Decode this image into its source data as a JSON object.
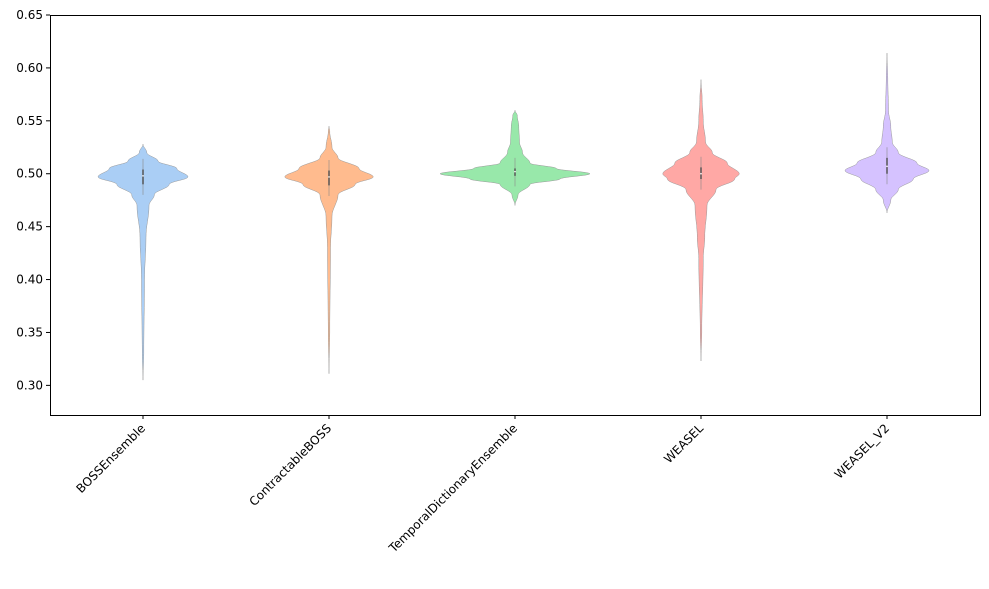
{
  "chart_data": {
    "type": "violin",
    "title": "",
    "xlabel": "",
    "ylabel": "",
    "ylim": [
      0.272,
      0.65
    ],
    "yticks": [
      0.3,
      0.35,
      0.4,
      0.45,
      0.5,
      0.55,
      0.6,
      0.65
    ],
    "ytick_labels": [
      "0.30",
      "0.35",
      "0.40",
      "0.45",
      "0.50",
      "0.55",
      "0.60",
      "0.65"
    ],
    "grid": false,
    "categories": [
      "BOSSEnsemble",
      "ContractableBOSS",
      "TemporalDictionaryEnsemble",
      "WEASEL",
      "WEASEL_V2"
    ],
    "colors": [
      "#a1c9f4",
      "#ffb482",
      "#8de5a1",
      "#ff9f9b",
      "#d0bbff"
    ],
    "series": [
      {
        "name": "BOSSEnsemble",
        "median": 0.498,
        "q1": 0.49,
        "q3": 0.504,
        "min": 0.305,
        "max": 0.528,
        "density": [
          [
            0.305,
            0
          ],
          [
            0.33,
            0.01
          ],
          [
            0.4,
            0.02
          ],
          [
            0.44,
            0.04
          ],
          [
            0.47,
            0.08
          ],
          [
            0.48,
            0.15
          ],
          [
            0.49,
            0.35
          ],
          [
            0.497,
            0.6
          ],
          [
            0.505,
            0.45
          ],
          [
            0.512,
            0.2
          ],
          [
            0.52,
            0.05
          ],
          [
            0.528,
            0
          ]
        ]
      },
      {
        "name": "ContractableBOSS",
        "median": 0.497,
        "q1": 0.489,
        "q3": 0.503,
        "min": 0.311,
        "max": 0.545,
        "density": [
          [
            0.311,
            0
          ],
          [
            0.35,
            0.01
          ],
          [
            0.43,
            0.02
          ],
          [
            0.46,
            0.04
          ],
          [
            0.48,
            0.12
          ],
          [
            0.49,
            0.35
          ],
          [
            0.497,
            0.59
          ],
          [
            0.505,
            0.4
          ],
          [
            0.515,
            0.12
          ],
          [
            0.525,
            0.04
          ],
          [
            0.54,
            0.01
          ],
          [
            0.545,
            0
          ]
        ]
      },
      {
        "name": "TemporalDictionaryEnsemble",
        "median": 0.502,
        "q1": 0.498,
        "q3": 0.505,
        "min": 0.47,
        "max": 0.56,
        "density": [
          [
            0.47,
            0
          ],
          [
            0.48,
            0.04
          ],
          [
            0.49,
            0.2
          ],
          [
            0.495,
            0.6
          ],
          [
            0.5,
            1.0
          ],
          [
            0.505,
            0.55
          ],
          [
            0.51,
            0.2
          ],
          [
            0.52,
            0.1
          ],
          [
            0.53,
            0.06
          ],
          [
            0.545,
            0.05
          ],
          [
            0.555,
            0.03
          ],
          [
            0.56,
            0
          ]
        ]
      },
      {
        "name": "WEASEL",
        "median": 0.5,
        "q1": 0.495,
        "q3": 0.506,
        "min": 0.323,
        "max": 0.589,
        "density": [
          [
            0.323,
            0
          ],
          [
            0.35,
            0.01
          ],
          [
            0.42,
            0.03
          ],
          [
            0.44,
            0.05
          ],
          [
            0.47,
            0.08
          ],
          [
            0.485,
            0.2
          ],
          [
            0.495,
            0.45
          ],
          [
            0.5,
            0.51
          ],
          [
            0.51,
            0.35
          ],
          [
            0.52,
            0.15
          ],
          [
            0.53,
            0.06
          ],
          [
            0.55,
            0.03
          ],
          [
            0.57,
            0.015
          ],
          [
            0.589,
            0
          ]
        ]
      },
      {
        "name": "WEASEL_V2",
        "median": 0.507,
        "q1": 0.5,
        "q3": 0.515,
        "min": 0.463,
        "max": 0.614,
        "density": [
          [
            0.463,
            0
          ],
          [
            0.475,
            0.05
          ],
          [
            0.485,
            0.15
          ],
          [
            0.495,
            0.35
          ],
          [
            0.503,
            0.56
          ],
          [
            0.51,
            0.4
          ],
          [
            0.52,
            0.15
          ],
          [
            0.53,
            0.07
          ],
          [
            0.545,
            0.05
          ],
          [
            0.56,
            0.02
          ],
          [
            0.59,
            0.01
          ],
          [
            0.614,
            0
          ]
        ]
      }
    ]
  }
}
